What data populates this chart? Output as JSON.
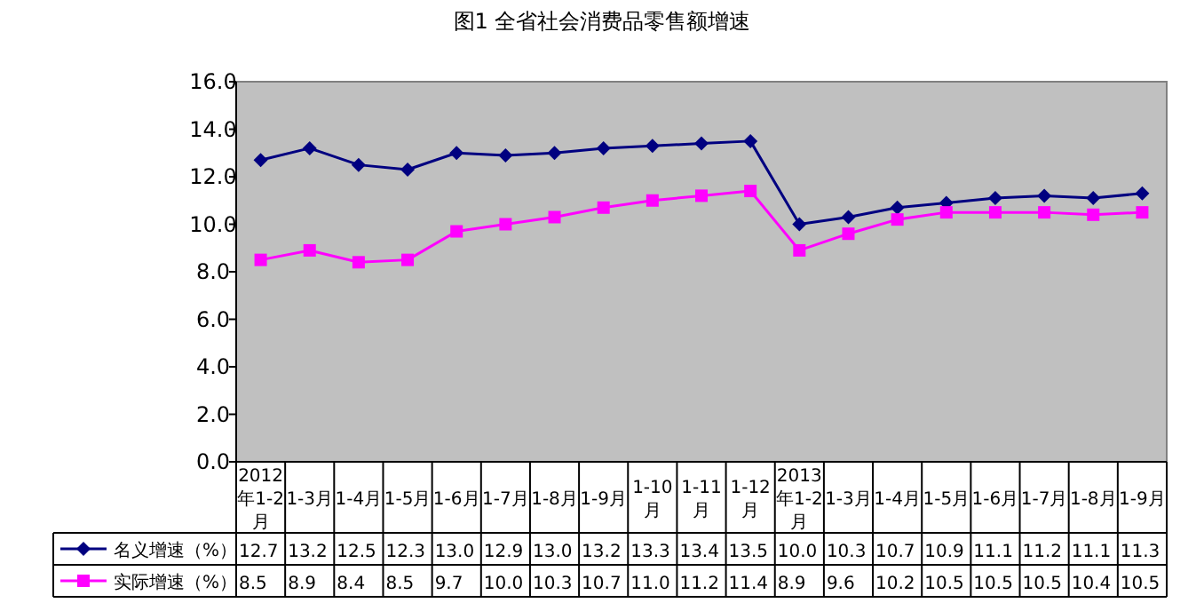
{
  "chart_data": {
    "type": "line",
    "title": "图1 全省社会消费品零售额增速",
    "categories": [
      "2012年1-2月",
      "1-3月",
      "1-4月",
      "1-5月",
      "1-6月",
      "1-7月",
      "1-8月",
      "1-9月",
      "1-10月",
      "1-11月",
      "1-12月",
      "2013年1-2月",
      "1-3月",
      "1-4月",
      "1-5月",
      "1-6月",
      "1-7月",
      "1-8月",
      "1-9月"
    ],
    "series": [
      {
        "name": "名义增速（%）",
        "color": "#000080",
        "marker": "diamond",
        "values": [
          12.7,
          13.2,
          12.5,
          12.3,
          13.0,
          12.9,
          13.0,
          13.2,
          13.3,
          13.4,
          13.5,
          10.0,
          10.3,
          10.7,
          10.9,
          11.1,
          11.2,
          11.1,
          11.3
        ],
        "value_labels": [
          "12.7",
          "13.2",
          "12.5",
          "12.3",
          "13.0",
          "12.9",
          "13.0",
          "13.2",
          "13.3",
          "13.4",
          "13.5",
          "10.0",
          "10.3",
          "10.7",
          "10.9",
          "11.1",
          "11.2",
          "11.1",
          "11.3"
        ]
      },
      {
        "name": "实际增速（%）",
        "color": "#ff00ff",
        "marker": "square",
        "values": [
          8.5,
          8.9,
          8.4,
          8.5,
          9.7,
          10.0,
          10.3,
          10.7,
          11.0,
          11.2,
          11.4,
          8.9,
          9.6,
          10.2,
          10.5,
          10.5,
          10.5,
          10.4,
          10.5
        ],
        "value_labels": [
          "8.5",
          "8.9",
          "8.4",
          "8.5",
          "9.7",
          "10.0",
          "10.3",
          "10.7",
          "11.0",
          "11.2",
          "11.4",
          "8.9",
          "9.6",
          "10.2",
          "10.5",
          "10.5",
          "10.5",
          "10.4",
          "10.5"
        ]
      }
    ],
    "ylim": [
      0,
      16
    ],
    "yticks": [
      {
        "value": 0,
        "label": "0.0"
      },
      {
        "value": 2,
        "label": "2.0"
      },
      {
        "value": 4,
        "label": "4.0"
      },
      {
        "value": 6,
        "label": "6.0"
      },
      {
        "value": 8,
        "label": "8.0"
      },
      {
        "value": 10,
        "label": "10.0"
      },
      {
        "value": 12,
        "label": "12.0"
      },
      {
        "value": 14,
        "label": "14.0"
      },
      {
        "value": 16,
        "label": "16.0"
      }
    ],
    "grid": false,
    "legend": "bottom",
    "line_style": "solid"
  }
}
